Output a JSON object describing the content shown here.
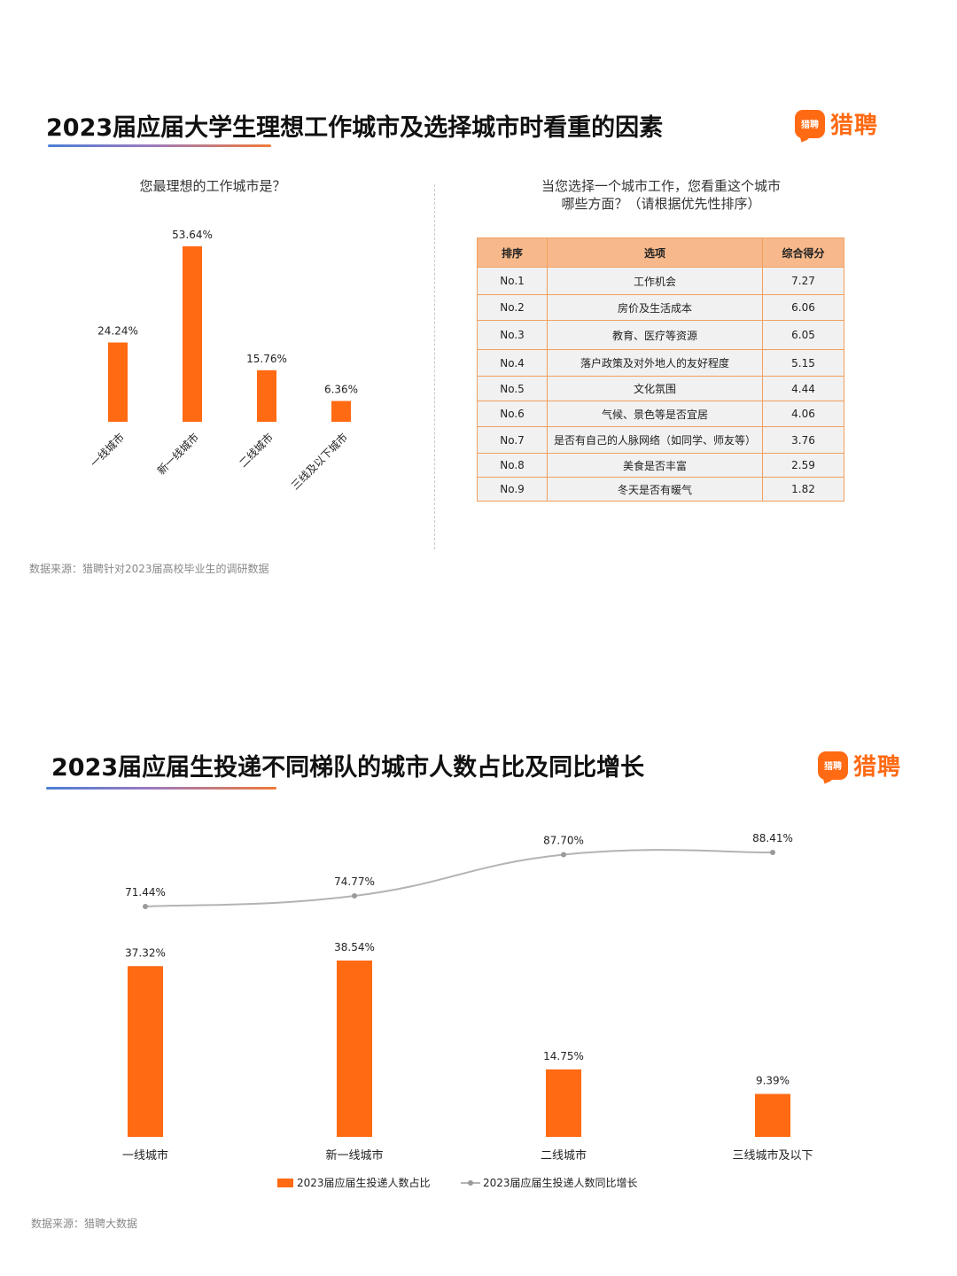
{
  "section1": {
    "title": "2023届应届大学生理想工作城市及选择城市时看重的因素",
    "logo_mark": "猎聘",
    "logo_text": "猎聘",
    "source": "数据来源：猎聘针对2023届高校毕业生的调研数据"
  },
  "section2": {
    "title": "2023届应届生投递不同梯队的城市人数占比及同比增长",
    "logo_mark": "猎聘",
    "logo_text": "猎聘",
    "source": "数据来源：猎聘大数据"
  },
  "ranking_table": {
    "title_line1": "当您选择一个城市工作，您看重这个城市",
    "title_line2": "哪些方面？（请根据优先性排序）",
    "headers": [
      "排序",
      "选项",
      "综合得分"
    ],
    "rows": [
      {
        "rank": "No.1",
        "option": "工作机会",
        "score": "7.27"
      },
      {
        "rank": "No.2",
        "option": "房价及生活成本",
        "score": "6.06"
      },
      {
        "rank": "No.3",
        "option": "教育、医疗等资源",
        "score": "6.05"
      },
      {
        "rank": "No.4",
        "option": "落户政策及对外地人的友好程度",
        "score": "5.15"
      },
      {
        "rank": "No.5",
        "option": "文化氛围",
        "score": "4.44"
      },
      {
        "rank": "No.6",
        "option": "气候、景色等是否宜居",
        "score": "4.06"
      },
      {
        "rank": "No.7",
        "option": "是否有自己的人脉网络（如同学、师友等）",
        "score": "3.76"
      },
      {
        "rank": "No.8",
        "option": "美食是否丰富",
        "score": "2.59"
      },
      {
        "rank": "No.9",
        "option": "冬天是否有暖气",
        "score": "1.82"
      }
    ]
  },
  "colors": {
    "orange": "#ff6a13",
    "line_gray": "#b3b3b3",
    "table_header": "#f7b98b",
    "table_border": "#f0a060"
  },
  "chart_data": [
    {
      "type": "bar",
      "title": "您最理想的工作城市是？",
      "categories": [
        "一线城市",
        "新一线城市",
        "二线城市",
        "三线及以下城市"
      ],
      "values": [
        24.24,
        53.64,
        15.76,
        6.36
      ],
      "value_labels": [
        "24.24%",
        "53.64%",
        "15.76%",
        "6.36%"
      ],
      "unit": "%",
      "ylim": [
        0,
        60
      ],
      "grid": false,
      "legend": "none",
      "color": "#ff6a13"
    },
    {
      "type": "bar+line",
      "categories": [
        "一线城市",
        "新一线城市",
        "二线城市",
        "三线城市及以下"
      ],
      "series": [
        {
          "name": "2023届应届生投递人数占比",
          "type": "bar",
          "values": [
            37.32,
            38.54,
            14.75,
            9.39
          ],
          "value_labels": [
            "37.32%",
            "38.54%",
            "14.75%",
            "9.39%"
          ],
          "color": "#ff6a13"
        },
        {
          "name": "2023届应届生投递人数同比增长",
          "type": "line",
          "values": [
            71.44,
            74.77,
            87.7,
            88.41
          ],
          "value_labels": [
            "71.44%",
            "74.77%",
            "87.70%",
            "88.41%"
          ],
          "color": "#b3b3b3"
        }
      ],
      "unit": "%",
      "grid": false,
      "legend": "bottom"
    }
  ]
}
